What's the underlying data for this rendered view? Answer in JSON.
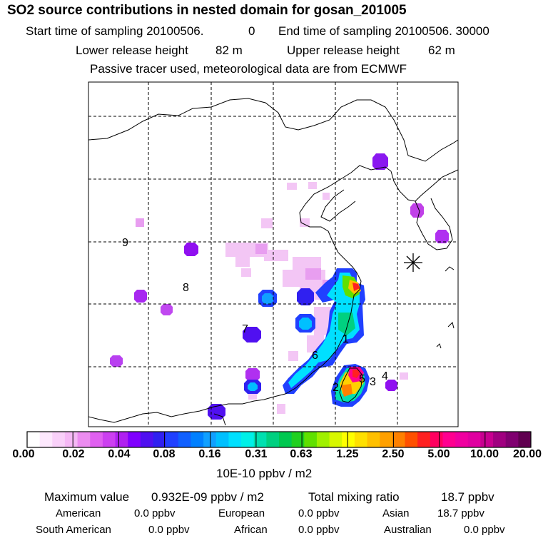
{
  "title": "SO2 source contributions in nested domain for gosan_201005",
  "subtitle": {
    "start_label": "Start time of sampling 20100506.",
    "start_value": "0",
    "end_label": "End time of sampling 20100506. 30000",
    "lower_label": "Lower release height",
    "lower_value": "82 m",
    "upper_label": "Upper release height",
    "upper_value": "62 m",
    "note": "Passive tracer used, meteorological data are from ECMWF"
  },
  "map": {
    "region_labels": [
      "1",
      "2",
      "3",
      "4",
      "5",
      "6",
      "7",
      "8",
      "9"
    ],
    "receptor": "gosan-receptor-star"
  },
  "colorbar": {
    "unit": "10E-10 ppbv / m2",
    "tick_labels": [
      "0.00",
      "0.02",
      "0.04",
      "0.08",
      "0.16",
      "0.31",
      "0.63",
      "1.25",
      "2.50",
      "5.00",
      "10.00",
      "20.00"
    ],
    "colors": [
      "#ffffff",
      "#fde8fd",
      "#f9d0f9",
      "#f5b8f5",
      "#ec8cf0",
      "#e060f0",
      "#cc40f0",
      "#b020f0",
      "#8000ff",
      "#5010f0",
      "#3020f0",
      "#2040ff",
      "#1060ff",
      "#0080ff",
      "#10a0ff",
      "#00c0ff",
      "#00e0ff",
      "#00f0e8",
      "#00e0b0",
      "#00d080",
      "#00c850",
      "#20d020",
      "#60e000",
      "#a0f000",
      "#d8f800",
      "#ffff00",
      "#ffe000",
      "#ffc000",
      "#ffa000",
      "#ff8000",
      "#ff5000",
      "#ff2020",
      "#ff0060",
      "#ff0090",
      "#f000a0",
      "#e000a0",
      "#c80090",
      "#a00080",
      "#800070",
      "#600050"
    ]
  },
  "stats": {
    "max_label": "Maximum value",
    "max_value": "0.932E-09 ppbv / m2",
    "total_label": "Total mixing ratio",
    "total_value": "18.7 ppbv",
    "american_label": "American",
    "american_value": "0.0 ppbv",
    "european_label": "European",
    "european_value": "0.0 ppbv",
    "asian_label": "Asian",
    "asian_value": "18.7 ppbv",
    "south_american_label": "South American",
    "south_american_value": "0.0 ppbv",
    "african_label": "African",
    "african_value": "0.0 ppbv",
    "australian_label": "Australian",
    "australian_value": "0.0 ppbv"
  }
}
